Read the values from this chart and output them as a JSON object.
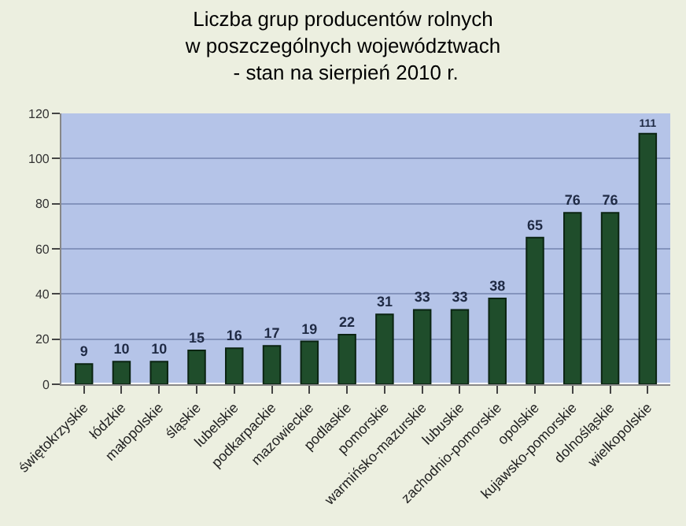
{
  "chart_data": {
    "type": "bar",
    "title": "Liczba grup producentów rolnych\nw poszczególnych województwach\n - stan na sierpień 2010 r.",
    "categories": [
      "świętokrzyskie",
      "łódzkie",
      "małopolskie",
      "śląskie",
      "lubelskie",
      "podkarpackie",
      "mazowieckie",
      "podlaskie",
      "pomorskie",
      "warmińsko-mazurskie",
      "lubuskie",
      "zachodnio-pomorskie",
      "opolskie",
      "kujawsko-pomorskie",
      "dolnośląskie",
      "wielkopolskie"
    ],
    "values": [
      9,
      10,
      10,
      15,
      16,
      17,
      19,
      22,
      31,
      33,
      33,
      38,
      65,
      76,
      76,
      111
    ],
    "color": "#1f4d2b",
    "ylim": [
      0,
      120
    ],
    "yticks": [
      0,
      20,
      40,
      60,
      80,
      100,
      120
    ],
    "grid": "y",
    "data_labels": true
  }
}
